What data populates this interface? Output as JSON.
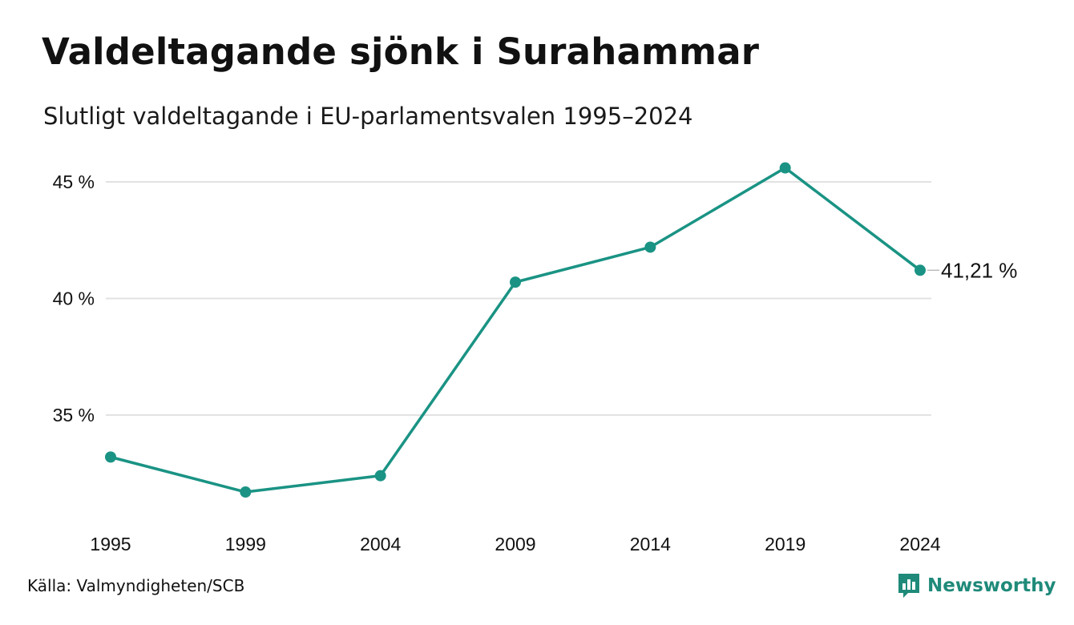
{
  "title": "Valdeltagande sjönk i Surahammar",
  "subtitle": "Slutligt valdeltagande i EU-parlamentsvalen 1995–2024",
  "source": "Källa: Valmyndigheten/SCB",
  "brand": {
    "name": "Newsworthy",
    "icon": "newsworthy-logo-icon",
    "color": "#1f8a7a"
  },
  "colors": {
    "line": "#1a9384",
    "grid": "#e2e2e2"
  },
  "chart_data": {
    "type": "line",
    "x": [
      "1995",
      "1999",
      "2004",
      "2009",
      "2014",
      "2019",
      "2024"
    ],
    "series": [
      {
        "values": [
          33.2,
          31.7,
          32.4,
          40.7,
          42.2,
          45.6,
          41.21
        ]
      }
    ],
    "ylim": [
      30,
      46.5
    ],
    "yticks": [
      35,
      40,
      45
    ],
    "ytick_labels": [
      "35 %",
      "40 %",
      "45 %"
    ],
    "end_label": "41,21 %",
    "grid": "horizontal",
    "legend": "none"
  }
}
